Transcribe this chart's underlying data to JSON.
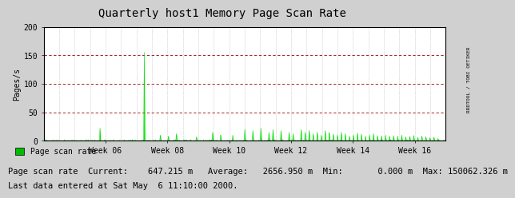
{
  "title": "Quarterly host1 Memory Page Scan Rate",
  "ylabel": "Pages/s",
  "bg_color": "#d0d0d0",
  "plot_bg_color": "#ffffff",
  "grid_color_dotted": "#a0a0a0",
  "grid_color_dashed": "#990000",
  "line_color": "#00dd00",
  "border_color": "#000000",
  "ylim": [
    0,
    200
  ],
  "yticks": [
    0,
    50,
    100,
    150,
    200
  ],
  "week_labels": [
    "Week 06",
    "Week 08",
    "Week 10",
    "Week 12",
    "Week 14",
    "Week 16"
  ],
  "legend_label": "Page scan rate",
  "legend_color": "#00bb00",
  "stats_text": "Page scan rate  Current:    647.215 m   Average:   2656.950 m  Min:       0.000 m  Max: 150062.326 m",
  "last_data_text": "Last data entered at Sat May  6 11:10:00 2000.",
  "right_label": "RRDTOOL / TOBI OETIKER",
  "title_fontsize": 10,
  "axis_fontsize": 7,
  "stats_fontsize": 7.5,
  "arrow_color": "#cc0000"
}
